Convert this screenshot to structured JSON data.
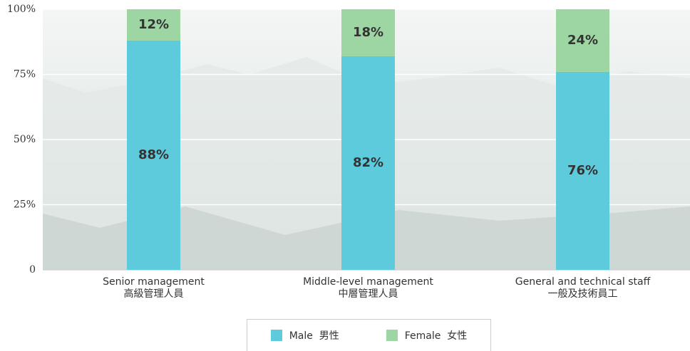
{
  "chart_data": {
    "type": "stacked_bar",
    "categories": [
      "Senior management\n高級管理人員",
      "Middle-level management\n中層管理人員",
      "General and technical staff\n一般及技術員工"
    ],
    "series": [
      {
        "name": "Male  男性",
        "color": "#5ecbdc",
        "values": [
          88,
          82,
          76
        ],
        "value_labels": [
          "88%",
          "82%",
          "76%"
        ]
      },
      {
        "name": "Female  女性",
        "color": "#9dd5a3",
        "values": [
          12,
          18,
          24
        ],
        "value_labels": [
          "12%",
          "18%",
          "24%"
        ]
      }
    ],
    "ylim": [
      0,
      100
    ],
    "yticks": [
      {
        "value": 0,
        "label": "0"
      },
      {
        "value": 25,
        "label": "25%"
      },
      {
        "value": 50,
        "label": "50%"
      },
      {
        "value": 75,
        "label": "75%"
      },
      {
        "value": 100,
        "label": "100%"
      }
    ],
    "grid": true
  }
}
